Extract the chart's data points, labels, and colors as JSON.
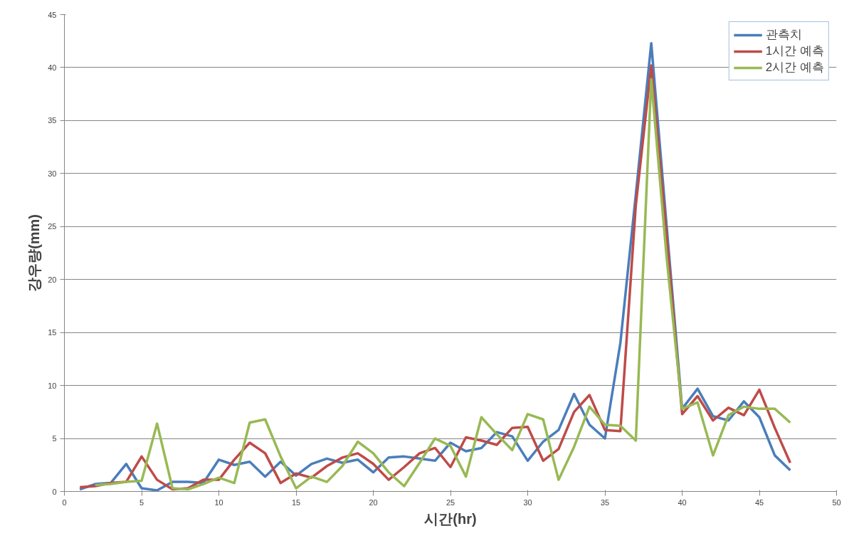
{
  "chart_data": {
    "type": "line",
    "xlabel": "시간(hr)",
    "ylabel": "강우량(mm)",
    "xlim": [
      0,
      50
    ],
    "ylim": [
      0,
      45
    ],
    "xticks": [
      0,
      5,
      10,
      15,
      20,
      25,
      30,
      35,
      40,
      45,
      50
    ],
    "yticks": [
      0,
      5,
      10,
      15,
      20,
      25,
      30,
      35,
      40,
      45
    ],
    "grid": "y",
    "legend": "top right",
    "marker": "none",
    "line_style": "solid",
    "series": [
      {
        "name": "관측치",
        "color": "#4a7ebb",
        "x": [
          1,
          2,
          3,
          4,
          5,
          6,
          7,
          8,
          9,
          10,
          11,
          12,
          13,
          14,
          15,
          16,
          17,
          18,
          19,
          20,
          21,
          22,
          23,
          24,
          25,
          26,
          27,
          28,
          29,
          30,
          31,
          32,
          33,
          34,
          35,
          36,
          37,
          38,
          39,
          40,
          41,
          42,
          43,
          44,
          45,
          46,
          47
        ],
        "values": [
          0.2,
          0.7,
          0.8,
          2.6,
          0.3,
          0.1,
          0.9,
          0.9,
          0.8,
          3.0,
          2.5,
          2.8,
          1.4,
          2.8,
          1.5,
          2.6,
          3.1,
          2.7,
          3.0,
          1.8,
          3.2,
          3.3,
          3.1,
          2.9,
          4.6,
          3.8,
          4.1,
          5.6,
          5.2,
          2.9,
          4.7,
          5.8,
          9.2,
          6.3,
          5.0,
          14,
          28,
          42.3,
          25,
          7.8,
          9.7,
          7.1,
          6.7,
          8.5,
          7.0,
          3.4,
          2.0
        ]
      },
      {
        "name": "1시간 예측",
        "color": "#be4b48",
        "x": [
          1,
          2,
          3,
          4,
          5,
          6,
          7,
          8,
          9,
          10,
          11,
          12,
          13,
          14,
          15,
          16,
          17,
          18,
          19,
          20,
          21,
          22,
          23,
          24,
          25,
          26,
          27,
          28,
          29,
          30,
          31,
          32,
          33,
          34,
          35,
          36,
          37,
          38,
          39,
          40,
          41,
          42,
          43,
          44,
          45,
          46,
          47
        ],
        "values": [
          0.4,
          0.5,
          0.8,
          0.9,
          3.3,
          1.1,
          0.2,
          0.3,
          1.1,
          1.1,
          3.0,
          4.6,
          3.6,
          0.8,
          1.7,
          1.3,
          2.4,
          3.2,
          3.6,
          2.6,
          1.1,
          2.3,
          3.6,
          4.1,
          2.3,
          5.1,
          4.8,
          4.4,
          6.0,
          6.1,
          2.9,
          4.0,
          7.5,
          9.1,
          5.8,
          5.7,
          27,
          40.2,
          24,
          7.3,
          9.0,
          6.7,
          7.9,
          7.2,
          9.6,
          6.0,
          2.7
        ]
      },
      {
        "name": "2시간 예측",
        "color": "#98b954",
        "x": [
          2,
          3,
          4,
          5,
          6,
          7,
          8,
          9,
          10,
          11,
          12,
          13,
          14,
          15,
          16,
          17,
          18,
          19,
          20,
          21,
          22,
          23,
          24,
          25,
          26,
          27,
          28,
          29,
          30,
          31,
          32,
          33,
          34,
          35,
          36,
          37,
          38,
          39,
          40,
          41,
          42,
          43,
          44,
          45,
          46,
          47
        ],
        "values": [
          0.6,
          0.7,
          0.9,
          1.0,
          6.4,
          0.3,
          0.2,
          0.7,
          1.3,
          0.8,
          6.5,
          6.8,
          3.3,
          0.3,
          1.4,
          0.9,
          2.4,
          4.7,
          3.6,
          1.8,
          0.5,
          2.7,
          5.0,
          4.3,
          1.4,
          7.0,
          5.4,
          3.9,
          7.3,
          6.8,
          1.1,
          4.2,
          8.0,
          6.3,
          6.2,
          4.8,
          38.9,
          22,
          7.8,
          8.4,
          3.4,
          7.2,
          8.0,
          7.8,
          7.8,
          6.5
        ]
      }
    ]
  }
}
